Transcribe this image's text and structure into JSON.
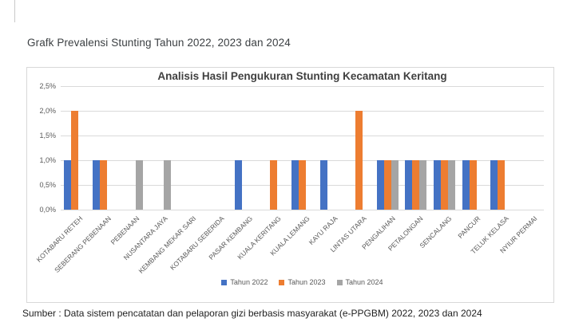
{
  "page": {
    "doc_title": "Grafk Prevalensi Stunting Tahun 2022, 2023 dan 2024",
    "source_note": "Sumber : Data sistem pencatatan dan pelaporan gizi berbasis masyarakat (e-PPGBM) 2022, 2023 dan 2024"
  },
  "chart_data": {
    "type": "bar",
    "title": "Analisis Hasil Pengukuran Stunting Kecamatan Keritang",
    "categories": [
      "KOTABARU RETEH",
      "SEBERANG PEBENAAN",
      "PEBENAAN",
      "NUSANTARA JAYA",
      "KEMBANG MEKAR SARI",
      "KOTABARU SEBERIDA",
      "PASAR KEMBANG",
      "KUALA KERITANG",
      "KUALA LEMANG",
      "KAYU RAJA",
      "LINTAS UTARA",
      "PENGALIHAN",
      "PETALONGAN",
      "SENCALANG",
      "PANCUR",
      "TELUK KELASA",
      "NYIUR PERMAI"
    ],
    "series": [
      {
        "name": "Tahun 2022",
        "color": "#4472C4",
        "values": [
          1.0,
          1.0,
          0,
          0,
          0,
          0,
          1.0,
          0,
          1.0,
          1.0,
          0,
          1.0,
          1.0,
          1.0,
          1.0,
          1.0,
          0
        ]
      },
      {
        "name": "Tahun 2023",
        "color": "#ED7D31",
        "values": [
          2.0,
          1.0,
          0,
          0,
          0,
          0,
          0,
          1.0,
          1.0,
          0,
          2.0,
          1.0,
          1.0,
          1.0,
          1.0,
          1.0,
          0
        ]
      },
      {
        "name": "Tahun 2024",
        "color": "#A5A5A5",
        "values": [
          0,
          0,
          1.0,
          1.0,
          0,
          0,
          0,
          0,
          0,
          0,
          0,
          1.0,
          1.0,
          1.0,
          0,
          0,
          0
        ]
      }
    ],
    "ylim": [
      0,
      2.5
    ],
    "ytick_step": 0.5,
    "ytick_labels": [
      "0,0%",
      "0,5%",
      "1,0%",
      "1,5%",
      "2,0%",
      "2,5%"
    ],
    "xlabel": "",
    "ylabel": "",
    "grid": true,
    "legend_position": "bottom",
    "x_label_rotation_deg": 45,
    "value_unit": "percent"
  }
}
